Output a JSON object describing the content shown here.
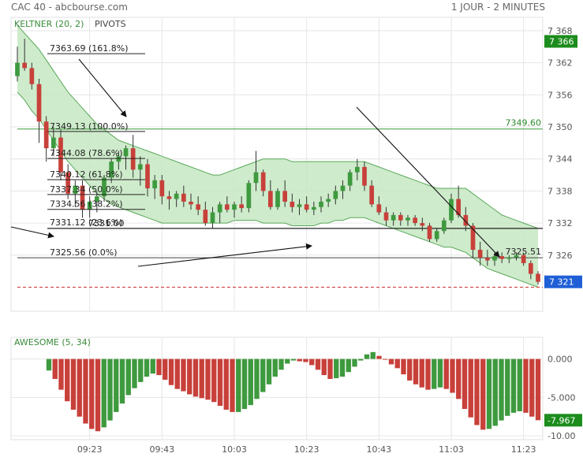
{
  "header": {
    "title": "CAC 40 - abcbourse.com",
    "period": "1 JOUR - 2 MINUTES"
  },
  "colors": {
    "up": "#3e9a3e",
    "down": "#c8403a",
    "band_fill": "#c6e7c2",
    "band_line": "#5aa85a",
    "grid": "#e6e6e6",
    "fib": "#222222",
    "green_hline": "#3c9a3c",
    "red_dash": "#cc3333",
    "tag_green": "#1c8c1c",
    "tag_blue": "#1f5fd6"
  },
  "chart_data": [
    {
      "type": "candlestick",
      "indicators": [
        "KELTNER (20, 2)",
        "PIVOTS"
      ],
      "ylim": [
        7315.5,
        7370.5
      ],
      "y_ticks": [
        "7 368",
        "7 362",
        "7 356",
        "7 350",
        "7 344",
        "7 338",
        "7 332",
        "7 326"
      ],
      "x_ticks": [
        {
          "label": "09:23",
          "index": 10
        },
        {
          "label": "09:43",
          "index": 20
        },
        {
          "label": "10:03",
          "index": 30
        },
        {
          "label": "10:23",
          "index": 40
        },
        {
          "label": "10:43",
          "index": 50
        },
        {
          "label": "11:03",
          "index": 60
        },
        {
          "label": "11:23",
          "index": 70
        }
      ],
      "candles": [
        [
          7359.5,
          7365.0,
          7358.5,
          7362.0
        ],
        [
          7362.0,
          7366.5,
          7360.5,
          7361.0
        ],
        [
          7361.0,
          7362.0,
          7357.0,
          7358.0
        ],
        [
          7358.0,
          7359.0,
          7347.0,
          7351.0
        ],
        [
          7351.0,
          7352.0,
          7343.5,
          7346.0
        ],
        [
          7346.0,
          7350.0,
          7344.5,
          7348.0
        ],
        [
          7348.0,
          7349.5,
          7340.0,
          7341.5
        ],
        [
          7341.5,
          7343.0,
          7336.5,
          7337.5
        ],
        [
          7337.5,
          7340.0,
          7335.0,
          7339.0
        ],
        [
          7339.0,
          7340.0,
          7333.0,
          7334.5
        ],
        [
          7334.5,
          7337.0,
          7333.0,
          7336.0
        ],
        [
          7336.0,
          7338.0,
          7334.0,
          7337.0
        ],
        [
          7337.0,
          7341.0,
          7336.0,
          7340.5
        ],
        [
          7340.5,
          7344.0,
          7339.5,
          7343.5
        ],
        [
          7343.5,
          7345.5,
          7342.0,
          7344.5
        ],
        [
          7344.5,
          7346.5,
          7342.0,
          7346.0
        ],
        [
          7346.0,
          7348.5,
          7340.5,
          7342.0
        ],
        [
          7342.0,
          7344.5,
          7339.0,
          7343.0
        ],
        [
          7343.0,
          7344.0,
          7337.0,
          7338.5
        ],
        [
          7338.5,
          7341.0,
          7336.5,
          7340.0
        ],
        [
          7340.0,
          7341.0,
          7335.5,
          7337.0
        ],
        [
          7337.0,
          7338.0,
          7334.5,
          7336.5
        ],
        [
          7336.5,
          7338.0,
          7335.0,
          7337.5
        ],
        [
          7337.5,
          7339.0,
          7335.0,
          7336.0
        ],
        [
          7336.0,
          7337.5,
          7334.5,
          7335.5
        ],
        [
          7335.5,
          7337.0,
          7333.5,
          7334.5
        ],
        [
          7334.5,
          7336.0,
          7331.5,
          7332.0
        ],
        [
          7332.0,
          7335.0,
          7331.0,
          7334.0
        ],
        [
          7334.0,
          7336.0,
          7332.0,
          7335.5
        ],
        [
          7335.5,
          7337.0,
          7334.0,
          7334.5
        ],
        [
          7334.5,
          7336.0,
          7333.0,
          7335.5
        ],
        [
          7335.5,
          7337.0,
          7334.0,
          7334.8
        ],
        [
          7334.8,
          7340.0,
          7334.0,
          7339.5
        ],
        [
          7339.5,
          7345.5,
          7338.0,
          7341.5
        ],
        [
          7341.5,
          7342.0,
          7337.0,
          7338.0
        ],
        [
          7338.0,
          7340.0,
          7334.5,
          7335.0
        ],
        [
          7335.0,
          7338.5,
          7334.5,
          7338.0
        ],
        [
          7338.0,
          7340.0,
          7335.0,
          7336.0
        ],
        [
          7336.0,
          7337.5,
          7334.0,
          7335.0
        ],
        [
          7335.0,
          7336.5,
          7333.5,
          7335.5
        ],
        [
          7335.5,
          7337.0,
          7334.0,
          7334.5
        ],
        [
          7334.5,
          7336.0,
          7333.5,
          7335.0
        ],
        [
          7335.0,
          7337.0,
          7334.0,
          7336.0
        ],
        [
          7336.0,
          7337.5,
          7335.0,
          7336.5
        ],
        [
          7336.5,
          7339.0,
          7335.5,
          7338.0
        ],
        [
          7338.0,
          7340.0,
          7336.5,
          7339.0
        ],
        [
          7339.0,
          7342.0,
          7338.0,
          7341.5
        ],
        [
          7341.5,
          7344.0,
          7340.0,
          7342.5
        ],
        [
          7342.5,
          7343.5,
          7338.0,
          7339.0
        ],
        [
          7339.0,
          7340.0,
          7335.0,
          7335.5
        ],
        [
          7335.5,
          7337.0,
          7333.5,
          7334.0
        ],
        [
          7334.0,
          7335.0,
          7331.5,
          7332.5
        ],
        [
          7332.5,
          7334.0,
          7331.5,
          7333.5
        ],
        [
          7333.5,
          7334.0,
          7331.5,
          7332.5
        ],
        [
          7332.5,
          7333.5,
          7331.5,
          7333.0
        ],
        [
          7333.0,
          7333.5,
          7331.5,
          7332.0
        ],
        [
          7332.0,
          7333.0,
          7330.5,
          7331.5
        ],
        [
          7331.5,
          7332.0,
          7328.5,
          7329.0
        ],
        [
          7329.0,
          7331.0,
          7328.5,
          7330.5
        ],
        [
          7330.5,
          7333.0,
          7330.0,
          7332.5
        ],
        [
          7332.5,
          7337.5,
          7332.0,
          7336.5
        ],
        [
          7336.5,
          7339.0,
          7333.0,
          7333.5
        ],
        [
          7333.5,
          7335.0,
          7330.5,
          7331.5
        ],
        [
          7331.5,
          7332.0,
          7325.5,
          7327.0
        ],
        [
          7327.0,
          7328.5,
          7324.0,
          7325.5
        ],
        [
          7325.5,
          7327.0,
          7324.0,
          7325.0
        ],
        [
          7325.0,
          7326.5,
          7324.0,
          7325.8
        ],
        [
          7325.8,
          7326.5,
          7324.5,
          7325.3
        ],
        [
          7325.3,
          7326.0,
          7324.5,
          7325.6
        ],
        [
          7325.6,
          7326.5,
          7325.0,
          7326.0
        ],
        [
          7326.0,
          7326.5,
          7324.0,
          7324.5
        ],
        [
          7324.5,
          7325.0,
          7321.5,
          7322.5
        ],
        [
          7322.5,
          7323.0,
          7320.5,
          7321.0
        ]
      ],
      "keltner_upper": [
        7369.0,
        7367.5,
        7366.0,
        7364.5,
        7362.5,
        7360.5,
        7358.5,
        7356.5,
        7355.0,
        7353.5,
        7352.0,
        7350.5,
        7349.5,
        7348.5,
        7347.5,
        7347.0,
        7346.5,
        7346.0,
        7345.5,
        7345.0,
        7344.5,
        7344.0,
        7343.5,
        7343.0,
        7342.5,
        7342.0,
        7341.5,
        7341.0,
        7341.0,
        7341.5,
        7342.0,
        7342.5,
        7343.0,
        7343.5,
        7344.0,
        7344.0,
        7344.0,
        7344.0,
        7343.5,
        7343.5,
        7343.5,
        7343.5,
        7343.5,
        7343.5,
        7343.5,
        7343.5,
        7343.5,
        7343.5,
        7343.5,
        7343.0,
        7342.5,
        7342.0,
        7341.5,
        7341.0,
        7340.5,
        7340.0,
        7339.5,
        7339.0,
        7338.5,
        7338.5,
        7338.5,
        7338.5,
        7338.5,
        7337.5,
        7336.5,
        7335.5,
        7334.5,
        7333.5,
        7333.0,
        7332.5,
        7332.0,
        7331.5,
        7331.0
      ],
      "keltner_lower": [
        7356.5,
        7355.0,
        7353.0,
        7351.5,
        7349.5,
        7347.5,
        7345.5,
        7343.5,
        7342.0,
        7340.5,
        7339.0,
        7337.5,
        7336.5,
        7335.5,
        7335.0,
        7334.5,
        7334.0,
        7333.5,
        7333.0,
        7332.5,
        7332.0,
        7332.0,
        7332.0,
        7332.0,
        7332.0,
        7332.0,
        7332.0,
        7332.0,
        7332.0,
        7332.0,
        7332.5,
        7332.5,
        7332.5,
        7332.5,
        7332.0,
        7332.0,
        7332.0,
        7332.0,
        7331.5,
        7331.5,
        7331.5,
        7331.5,
        7332.0,
        7332.0,
        7332.5,
        7332.5,
        7333.0,
        7333.0,
        7333.0,
        7332.5,
        7332.0,
        7331.5,
        7331.0,
        7330.5,
        7330.0,
        7329.5,
        7329.0,
        7328.5,
        7328.0,
        7327.5,
        7327.5,
        7327.0,
        7326.5,
        7325.5,
        7324.5,
        7323.5,
        7323.0,
        7322.5,
        7322.0,
        7321.5,
        7321.0,
        7320.5,
        7320.0
      ],
      "fibonacci": [
        {
          "label": "7363.69  (161.8%)",
          "value": 7363.69
        },
        {
          "label": "7349.13  (100.0%)",
          "value": 7349.13
        },
        {
          "label": "7344.08  (78.6%)",
          "value": 7344.08
        },
        {
          "label": "7340.12  (61.8%)",
          "value": 7340.12
        },
        {
          "label": "7337.34  (50.0%)",
          "value": 7337.34
        },
        {
          "label": "7334.56  (38.2%)",
          "value": 7334.56
        },
        {
          "label": "7331.12  (23.6%)",
          "value": 7331.12
        },
        {
          "label": "7325.56  (0.0%)",
          "value": 7325.56
        }
      ],
      "overlap_label": "7331.00",
      "pivot_level": 7331.0,
      "resistance": {
        "label": "7349.60",
        "value": 7349.6
      },
      "support_label": {
        "label": "7325.51",
        "value": 7325.51
      },
      "dashed_level": 7320.0,
      "last_price_tag": "7 321",
      "top_tag": "7 366"
    },
    {
      "type": "bar",
      "title": "AWESOME (5, 34)",
      "ylim": [
        -10.5,
        1.6
      ],
      "y_ticks": [
        "0.000",
        "-5.000",
        "-10.00"
      ],
      "last_value_tag": "-7.967",
      "values": [
        -1.5,
        -2.6,
        -4.0,
        -5.5,
        -6.6,
        -7.5,
        -8.4,
        -9.1,
        -9.4,
        -8.9,
        -8.0,
        -6.9,
        -5.8,
        -4.7,
        -3.8,
        -3.0,
        -2.3,
        -1.9,
        -2.1,
        -2.7,
        -3.4,
        -3.9,
        -4.2,
        -4.6,
        -4.9,
        -5.1,
        -5.3,
        -5.6,
        -6.1,
        -6.6,
        -6.9,
        -6.9,
        -6.5,
        -6.0,
        -5.2,
        -4.3,
        -3.3,
        -2.3,
        -1.4,
        -0.6,
        -0.2,
        -0.3,
        -0.4,
        -0.8,
        -1.4,
        -2.1,
        -2.6,
        -2.5,
        -2.3,
        -1.7,
        -1.0,
        -0.2,
        0.6,
        0.9,
        0.4,
        -0.1,
        -0.7,
        -1.2,
        -2.0,
        -2.8,
        -3.3,
        -3.7,
        -4.0,
        -3.9,
        -3.7,
        -3.9,
        -4.4,
        -5.2,
        -6.5,
        -7.6,
        -8.6,
        -9.2,
        -9.1,
        -8.7,
        -8.0,
        -7.4,
        -7.0,
        -6.8,
        -7.0,
        -7.5,
        -7.97
      ]
    }
  ]
}
